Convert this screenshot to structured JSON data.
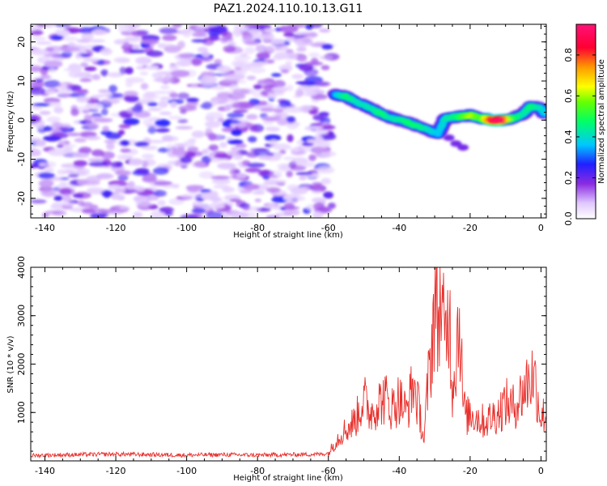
{
  "figure_title": "PAZ1.2024.110.10.13.G11",
  "colors": {
    "snr_line": "#e8302c",
    "colormap": [
      "#ffffff",
      "#cc99ff",
      "#8a2be2",
      "#1a1aff",
      "#00c8ff",
      "#00ff66",
      "#7dff00",
      "#ffff00",
      "#ff7f00",
      "#ff0033",
      "#ff1177"
    ]
  },
  "chart_data": [
    {
      "type": "heatmap",
      "title": "PAZ1.2024.110.10.13.G11",
      "xlabel": "Height of straight line (km)",
      "ylabel": "Frequency (Hz)",
      "xlim": [
        -144,
        1.5
      ],
      "ylim": [
        -25,
        24.5
      ],
      "xticks": [
        -140,
        -120,
        -100,
        -80,
        -60,
        -40,
        -20,
        0
      ],
      "yticks": [
        -20,
        -10,
        0,
        10,
        20
      ],
      "noise_region_x": [
        -144,
        -59
      ],
      "ridge": {
        "description_points": [
          {
            "x": -58,
            "y": 6.5,
            "amp": 0.35
          },
          {
            "x": -55,
            "y": 6.0,
            "amp": 0.45
          },
          {
            "x": -52,
            "y": 4.5,
            "amp": 0.4
          },
          {
            "x": -48,
            "y": 3.0,
            "amp": 0.4
          },
          {
            "x": -45,
            "y": 1.5,
            "amp": 0.45
          },
          {
            "x": -42,
            "y": 0.5,
            "amp": 0.4
          },
          {
            "x": -38,
            "y": -0.5,
            "amp": 0.45
          },
          {
            "x": -35,
            "y": -1.5,
            "amp": 0.45
          },
          {
            "x": -32,
            "y": -2.5,
            "amp": 0.4
          },
          {
            "x": -29,
            "y": -3.5,
            "amp": 0.35
          },
          {
            "x": -27,
            "y": 0.5,
            "amp": 0.4
          },
          {
            "x": -24,
            "y": 0.8,
            "amp": 0.45
          },
          {
            "x": -20,
            "y": 1.2,
            "amp": 0.6
          },
          {
            "x": -17,
            "y": 0.5,
            "amp": 0.5
          },
          {
            "x": -14,
            "y": 0.0,
            "amp": 0.85
          },
          {
            "x": -11,
            "y": 0.0,
            "amp": 0.9
          },
          {
            "x": -8,
            "y": 0.5,
            "amp": 0.5
          },
          {
            "x": -5,
            "y": 1.5,
            "amp": 0.4
          },
          {
            "x": -3,
            "y": 3.5,
            "amp": 0.45
          },
          {
            "x": 0,
            "y": 3.0,
            "amp": 0.4
          },
          {
            "x": 1,
            "y": 1.5,
            "amp": 0.35
          }
        ]
      },
      "colorbar": {
        "label": "Normalized spectral amplitude",
        "range": [
          0.0,
          0.95
        ],
        "ticks": [
          "0.0",
          "0.2",
          "0.4",
          "0.6",
          "0.8"
        ]
      }
    },
    {
      "type": "line",
      "xlabel": "Height of straight line (km)",
      "ylabel": "SNR (10 * v/v)",
      "xlim": [
        -144,
        1.5
      ],
      "ylim": [
        0,
        4000
      ],
      "xticks": [
        -140,
        -120,
        -100,
        -80,
        -60,
        -40,
        -20,
        0
      ],
      "yticks": [
        1000,
        2000,
        3000,
        4000
      ],
      "series": [
        {
          "x": [
            -144,
            -140,
            -130,
            -120,
            -110,
            -100,
            -90,
            -80,
            -70,
            -62,
            -60,
            -58,
            -56,
            -54,
            -52,
            -50,
            -49,
            -48,
            -46,
            -44,
            -42,
            -40,
            -38,
            -36,
            -34,
            -33,
            -32,
            -31,
            -30,
            -29,
            -28.5,
            -28,
            -27,
            -26,
            -25,
            -24,
            -23,
            -22,
            -21,
            -20,
            -18,
            -16,
            -14,
            -12,
            -10,
            -8,
            -6,
            -4,
            -2,
            0,
            1.5
          ],
          "y": [
            100,
            110,
            120,
            130,
            120,
            110,
            120,
            110,
            120,
            130,
            150,
            400,
            600,
            700,
            900,
            1300,
            1100,
            1000,
            1200,
            1300,
            1100,
            1300,
            1000,
            1600,
            900,
            400,
            1500,
            2200,
            3400,
            2800,
            3900,
            3000,
            2400,
            3300,
            1500,
            2200,
            3100,
            1200,
            900,
            1000,
            900,
            800,
            900,
            1000,
            1200,
            1100,
            1300,
            1600,
            1800,
            900,
            1000
          ]
        }
      ]
    }
  ]
}
